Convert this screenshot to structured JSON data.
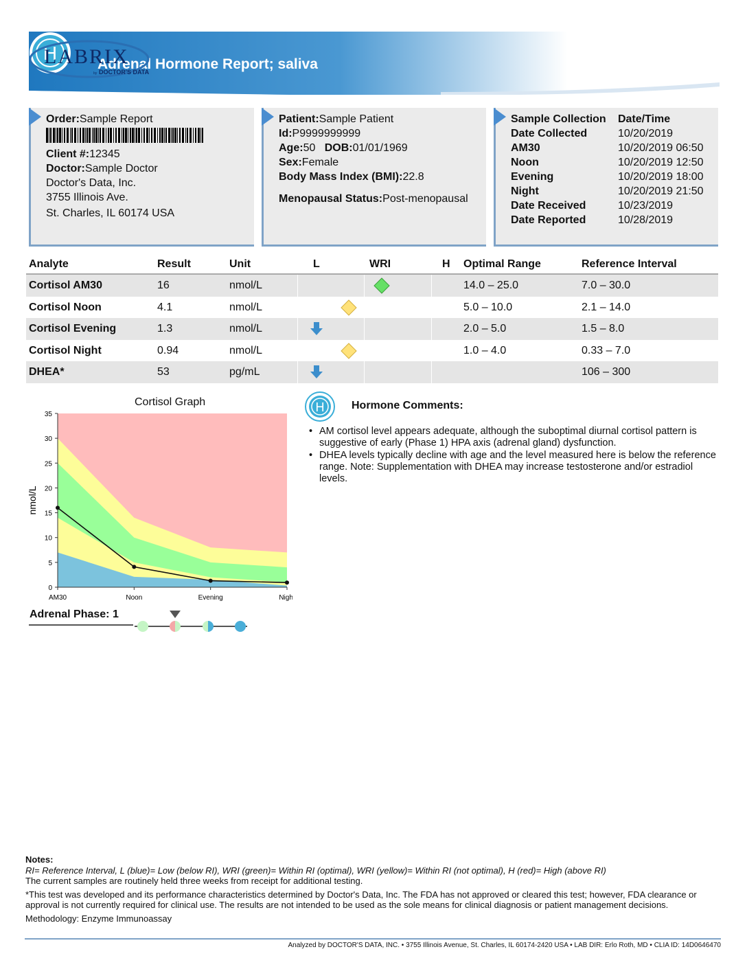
{
  "header": {
    "title": "Adrenal Hormone Report; saliva",
    "icon_letter": "H",
    "logo_main": "LABRIX",
    "logo_sub": "DOCTOR'S DATA",
    "logo_by": "by"
  },
  "order": {
    "order_label": "Order:",
    "order_value": "Sample Report",
    "client_label": "Client #:",
    "client_value": "12345",
    "doctor_label": "Doctor:",
    "doctor_value": "Sample Doctor",
    "org": "Doctor's Data, Inc.",
    "address1": "3755 Illinois Ave.",
    "address2": "St. Charles, IL 60174 USA"
  },
  "patient": {
    "patient_label": "Patient:",
    "patient_value": "Sample Patient",
    "id_label": "Id:",
    "id_value": "P9999999999",
    "age_label": "Age:",
    "age_value": "50",
    "dob_label": "DOB:",
    "dob_value": "01/01/1969",
    "sex_label": "Sex:",
    "sex_value": "Female",
    "bmi_label": "Body Mass Index (BMI):",
    "bmi_value": "22.8",
    "meno_label": "Menopausal Status:",
    "meno_value": "Post-menopausal"
  },
  "collection": {
    "header_left": "Sample Collection",
    "header_right": "Date/Time",
    "rows": [
      {
        "k": "Date Collected",
        "v": "10/20/2019"
      },
      {
        "k": "AM30",
        "v": "10/20/2019 06:50"
      },
      {
        "k": "Noon",
        "v": "10/20/2019 12:50"
      },
      {
        "k": "Evening",
        "v": "10/20/2019 18:00"
      },
      {
        "k": "Night",
        "v": "10/20/2019 21:50"
      },
      {
        "k": "Date Received",
        "v": "10/23/2019"
      },
      {
        "k": "Date Reported",
        "v": "10/28/2019"
      }
    ]
  },
  "table": {
    "headers": {
      "analyte": "Analyte",
      "result": "Result",
      "unit": "Unit",
      "l": "L",
      "wri": "WRI",
      "h": "H",
      "optimal": "Optimal Range",
      "reference": "Reference Interval"
    },
    "rows": [
      {
        "analyte": "Cortisol AM30",
        "result": "16",
        "unit": "nmol/L",
        "marker": "wri-green",
        "optimal": "14.0 – 25.0",
        "reference": "7.0 – 30.0"
      },
      {
        "analyte": "Cortisol Noon",
        "result": "4.1",
        "unit": "nmol/L",
        "marker": "wri-yellow",
        "optimal": "5.0 – 10.0",
        "reference": "2.1 – 14.0"
      },
      {
        "analyte": "Cortisol Evening",
        "result": "1.3",
        "unit": "nmol/L",
        "marker": "low-blue-arrow",
        "optimal": "2.0 – 5.0",
        "reference": "1.5 – 8.0"
      },
      {
        "analyte": "Cortisol Night",
        "result": "0.94",
        "unit": "nmol/L",
        "marker": "wri-yellow",
        "optimal": "1.0 – 4.0",
        "reference": "0.33 – 7.0"
      },
      {
        "analyte": "DHEA*",
        "result": "53",
        "unit": "pg/mL",
        "marker": "low-blue-arrow",
        "optimal": "",
        "reference": "106 – 300"
      }
    ]
  },
  "chart_data": {
    "type": "area",
    "title": "Cortisol Graph",
    "ylabel": "nmol/L",
    "xlabel": "",
    "categories": [
      "AM30",
      "Noon",
      "Evening",
      "Night"
    ],
    "ylim": [
      0,
      35
    ],
    "yticks": [
      0,
      5,
      10,
      15,
      20,
      25,
      30,
      35
    ],
    "grid": false,
    "bands": {
      "reference_low": [
        7.0,
        2.1,
        1.5,
        0.33
      ],
      "optimal_low": [
        14.0,
        5.0,
        2.0,
        1.0
      ],
      "optimal_high": [
        25.0,
        10.0,
        5.0,
        4.0
      ],
      "reference_high": [
        30.0,
        14.0,
        8.0,
        7.0
      ]
    },
    "band_colors": {
      "low": "#7cc3dd",
      "within": "#fdfd99",
      "optimal": "#99ff99",
      "high": "#ffbcbc"
    },
    "series": [
      {
        "values": [
          16,
          4.1,
          1.3,
          0.94
        ]
      }
    ]
  },
  "phase": {
    "label": "Adrenal Phase:",
    "value": "1",
    "indicator_position": 1
  },
  "comments": {
    "title": "Hormone Comments:",
    "items": [
      "AM cortisol level appears adequate, although the suboptimal diurnal cortisol pattern is suggestive of early (Phase 1) HPA axis (adrenal gland) dysfunction.",
      "DHEA levels typically decline with age and the level measured here is below the reference range. Note: Supplementation with DHEA may increase testosterone and/or estradiol levels."
    ]
  },
  "notes": {
    "title": "Notes:",
    "legend": "RI= Reference Interval, L (blue)= Low (below RI), WRI (green)= Within RI (optimal), WRI (yellow)= Within RI (not optimal), H (red)= High (above RI)",
    "hold": "The current samples are routinely held three weeks from receipt for additional testing.",
    "disclaimer": "*This test was developed and its performance characteristics determined by Doctor's Data, Inc. The FDA has not approved or cleared this test; however, FDA clearance or approval is not currently required for clinical use. The results are not intended to be used as the sole means for clinical diagnosis or patient management decisions.",
    "methodology": "Methodology: Enzyme Immunoassay"
  },
  "footer": "Analyzed by DOCTOR'S DATA, INC. • 3755 Illinois Avenue, St. Charles, IL 60174-2420 USA • LAB DIR: Erlo Roth, MD • CLIA ID: 14D0646470"
}
